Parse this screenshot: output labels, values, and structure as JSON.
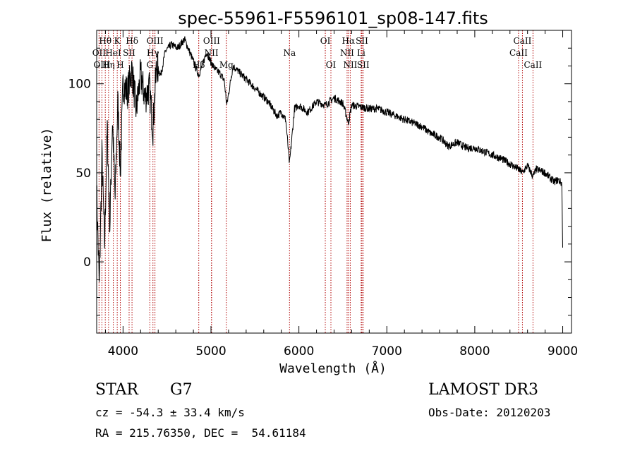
{
  "chart_data": {
    "type": "line",
    "title": "spec-55961-F5596101_sp08-147.fits",
    "xlabel": "Wavelength (Å)",
    "ylabel": "Flux (relative)",
    "xlim": [
      3700,
      9100
    ],
    "ylim": [
      -40,
      130
    ],
    "xticks": [
      4000,
      5000,
      6000,
      7000,
      8000,
      9000
    ],
    "yticks": [
      0,
      50,
      100
    ],
    "series": [
      {
        "name": "flux",
        "x": [
          3700,
          3730,
          3760,
          3790,
          3820,
          3850,
          3880,
          3910,
          3940,
          3970,
          4000,
          4050,
          4100,
          4150,
          4200,
          4250,
          4300,
          4340,
          4380,
          4430,
          4480,
          4550,
          4620,
          4700,
          4780,
          4860,
          4900,
          4950,
          5000,
          5050,
          5100,
          5150,
          5180,
          5250,
          5350,
          5450,
          5550,
          5650,
          5750,
          5800,
          5850,
          5893,
          5950,
          6000,
          6100,
          6200,
          6300,
          6400,
          6500,
          6563,
          6600,
          6700,
          6800,
          6900,
          7000,
          7100,
          7200,
          7300,
          7400,
          7500,
          7600,
          7700,
          7800,
          7900,
          8000,
          8100,
          8200,
          8300,
          8400,
          8498,
          8542,
          8600,
          8662,
          8700,
          8800,
          8900,
          8950,
          8990,
          9000
        ],
        "y": [
          40,
          -15,
          60,
          10,
          75,
          20,
          80,
          35,
          90,
          50,
          100,
          95,
          108,
          85,
          105,
          92,
          98,
          75,
          110,
          105,
          118,
          122,
          120,
          125,
          115,
          105,
          110,
          118,
          112,
          108,
          106,
          102,
          88,
          110,
          105,
          100,
          95,
          90,
          82,
          84,
          80,
          55,
          86,
          88,
          84,
          90,
          88,
          92,
          89,
          78,
          88,
          87,
          86,
          86,
          84,
          82,
          80,
          78,
          76,
          72,
          70,
          65,
          67,
          64,
          64,
          62,
          60,
          58,
          55,
          52,
          50,
          54,
          48,
          52,
          50,
          45,
          46,
          44,
          8
        ]
      }
    ],
    "lines": [
      {
        "name": "Hθ",
        "wl": 3798,
        "row": 1
      },
      {
        "name": "OII",
        "wl": 3727,
        "row": 2
      },
      {
        "name": "OIII",
        "wl": 3760,
        "row": 3
      },
      {
        "name": "K",
        "wl": 3934,
        "row": 1
      },
      {
        "name": "H",
        "wl": 3969,
        "row": 3
      },
      {
        "name": "Hη",
        "wl": 3835,
        "row": 3
      },
      {
        "name": "HeI",
        "wl": 3889,
        "row": 2
      },
      {
        "name": "SII",
        "wl": 4069,
        "row": 2
      },
      {
        "name": "Hδ",
        "wl": 4102,
        "row": 1
      },
      {
        "name": "OIII",
        "wl": 4363,
        "row": 1
      },
      {
        "name": "Hγ",
        "wl": 4340,
        "row": 2
      },
      {
        "name": "G",
        "wl": 4305,
        "row": 3
      },
      {
        "name": "OIII",
        "wl": 5007,
        "row": 1
      },
      {
        "name": "NII",
        "wl": 5005,
        "row": 2
      },
      {
        "name": "Hβ",
        "wl": 4861,
        "row": 3
      },
      {
        "name": "Mg",
        "wl": 5175,
        "row": 3
      },
      {
        "name": "Na",
        "wl": 5893,
        "row": 2
      },
      {
        "name": "OI",
        "wl": 6300,
        "row": 1
      },
      {
        "name": "OI",
        "wl": 6364,
        "row": 3
      },
      {
        "name": "Hα",
        "wl": 6563,
        "row": 1
      },
      {
        "name": "NII",
        "wl": 6548,
        "row": 2
      },
      {
        "name": "NII",
        "wl": 6584,
        "row": 3
      },
      {
        "name": "SII",
        "wl": 6717,
        "row": 1
      },
      {
        "name": "Li",
        "wl": 6708,
        "row": 2
      },
      {
        "name": "SII",
        "wl": 6731,
        "row": 3
      },
      {
        "name": "CaII",
        "wl": 8542,
        "row": 1
      },
      {
        "name": "CaII",
        "wl": 8498,
        "row": 2
      },
      {
        "name": "CaII",
        "wl": 8662,
        "row": 3
      }
    ],
    "grid": false
  },
  "info": {
    "class_label": "STAR",
    "subclass": "G7",
    "survey": "LAMOST DR3",
    "cz": "cz = -54.3 ± 33.4 km/s",
    "obs_date": "Obs-Date: 20120203",
    "radec": "RA = 215.76350, DEC =  54.61184"
  },
  "colors": {
    "marker": "#b00000",
    "spectrum": "#000000"
  }
}
